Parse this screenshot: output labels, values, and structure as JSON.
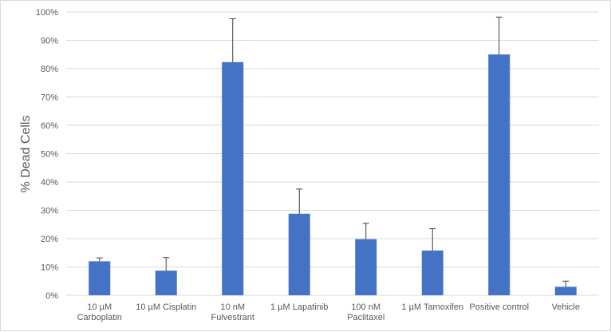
{
  "chart_data": {
    "type": "bar",
    "title": "",
    "xlabel": "",
    "ylabel": "% Dead Cells",
    "ylim": [
      0,
      100
    ],
    "yticks": [
      "0%",
      "10%",
      "20%",
      "30%",
      "40%",
      "50%",
      "60%",
      "70%",
      "80%",
      "90%",
      "100%"
    ],
    "grid": true,
    "legend": "none",
    "categories": [
      [
        "10 µM",
        "Carboplatin"
      ],
      [
        "10 µM Cisplatin"
      ],
      [
        "10 nM",
        "Fulvestrant"
      ],
      [
        "1 µM Lapatinib"
      ],
      [
        "100 nM",
        "Paclitaxel"
      ],
      [
        "1 µM Tamoxifen"
      ],
      [
        "Positive control"
      ],
      [
        "Vehicle"
      ]
    ],
    "series": [
      {
        "values": [
          12,
          8.7,
          82.3,
          28.8,
          19.8,
          15.8,
          85,
          3
        ],
        "error_plus": [
          1.2,
          4.6,
          15.3,
          8.7,
          5.6,
          7.7,
          13.2,
          2
        ]
      }
    ],
    "colors": {
      "bar": "#4472C4",
      "grid": "#d9d9d9",
      "error": "#404040",
      "text": "#595959"
    }
  }
}
